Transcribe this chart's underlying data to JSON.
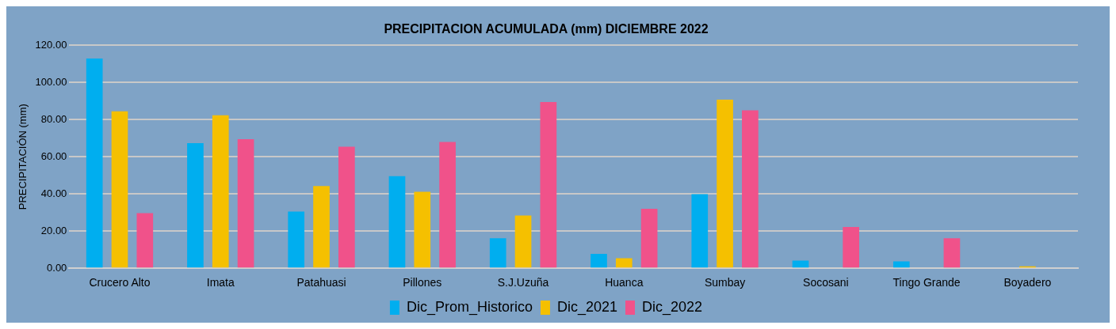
{
  "chart_data": {
    "type": "bar",
    "title": "PRECIPITACION ACUMULADA (mm) DICIEMBRE 2022",
    "ylabel": "PRECIPITACIÓN (mm)",
    "categories": [
      "Crucero Alto",
      "Imata",
      "Patahuasi",
      "Pillones",
      "S.J.Uzuña",
      "Huanca",
      "Sumbay",
      "Socosani",
      "Tingo Grande",
      "Boyadero"
    ],
    "series": [
      {
        "name": "Dic_Prom_Historico",
        "color": "#00aeef",
        "values": [
          112.9,
          67.3,
          30.5,
          49.6,
          16.1,
          7.7,
          39.9,
          4.1,
          3.7,
          null
        ]
      },
      {
        "name": "Dic_2021",
        "color": "#f5c000",
        "values": [
          84.5,
          82.3,
          44.2,
          41.2,
          28.4,
          5.4,
          90.7,
          0,
          null,
          1.0
        ]
      },
      {
        "name": "Dic_2022",
        "color": "#f0528a",
        "values": [
          29.7,
          69.5,
          65.4,
          68.0,
          89.4,
          32.0,
          85.0,
          22.2,
          16.1,
          null
        ]
      }
    ],
    "ylim": [
      0,
      120
    ],
    "yticks": [
      {
        "value": 0,
        "label": "0.00"
      },
      {
        "value": 20,
        "label": "20.00"
      },
      {
        "value": 40,
        "label": "40.00"
      },
      {
        "value": 60,
        "label": "60.00"
      },
      {
        "value": 80,
        "label": "80.00"
      },
      {
        "value": 100,
        "label": "100.00"
      },
      {
        "value": 120,
        "label": "120.00"
      }
    ],
    "grid": "y",
    "legend": "bottom"
  }
}
